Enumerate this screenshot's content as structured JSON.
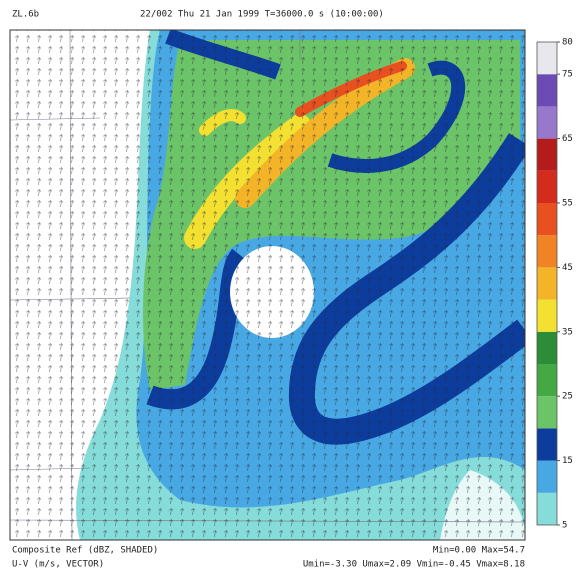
{
  "header": {
    "left": "ZL.6b",
    "title": "22/002 Thu 21 Jan 1999 T=36000.0 s (10:00:00)"
  },
  "footer": {
    "left_lines": [
      "Composite Ref (dBZ, SHADED)",
      "U-V (m/s, VECTOR)"
    ],
    "right_lines": [
      "Min=0.00 Max=54.7",
      "Umin=-3.30 Umax=2.09 Vmin=-0.45 Vmax=8.18"
    ]
  },
  "colorbar": {
    "levels": [
      5,
      10,
      15,
      20,
      25,
      30,
      35,
      40,
      45,
      50,
      55,
      60,
      65,
      70,
      75,
      80
    ],
    "colors": [
      "#86dcd8",
      "#48a8e4",
      "#0c3c9c",
      "#6cc468",
      "#44a844",
      "#2c8c38",
      "#f4e030",
      "#f4b428",
      "#f08424",
      "#e85020",
      "#d42c1c",
      "#b41c1c",
      "#9878cc",
      "#6c4cb4",
      "#e8e8ec"
    ],
    "ticks": [
      5,
      15,
      25,
      35,
      45,
      55,
      65,
      75,
      80
    ]
  }
}
